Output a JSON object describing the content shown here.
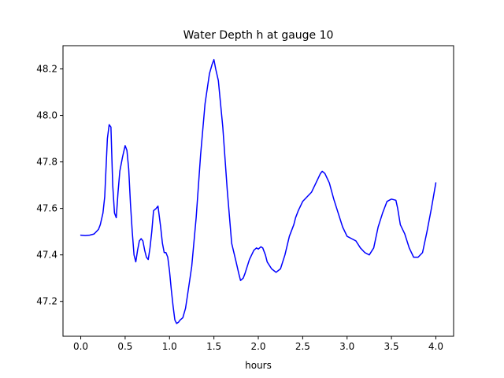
{
  "chart_data": {
    "type": "line",
    "title": "Water Depth h at gauge 10",
    "xlabel": "hours",
    "ylabel": "",
    "xlim": [
      -0.2,
      4.2
    ],
    "ylim": [
      47.05,
      48.3
    ],
    "xticks": [
      0.0,
      0.5,
      1.0,
      1.5,
      2.0,
      2.5,
      3.0,
      3.5,
      4.0
    ],
    "xtick_labels": [
      "0.0",
      "0.5",
      "1.0",
      "1.5",
      "2.0",
      "2.5",
      "3.0",
      "3.5",
      "4.0"
    ],
    "yticks": [
      47.2,
      47.4,
      47.6,
      47.8,
      48.0,
      48.2
    ],
    "ytick_labels": [
      "47.2",
      "47.4",
      "47.6",
      "47.8",
      "48.0",
      "48.2"
    ],
    "grid": false,
    "series": [
      {
        "color": "#0000ff",
        "x": [
          0.0,
          0.05,
          0.1,
          0.15,
          0.2,
          0.22,
          0.25,
          0.27,
          0.3,
          0.32,
          0.34,
          0.36,
          0.38,
          0.4,
          0.42,
          0.44,
          0.47,
          0.5,
          0.52,
          0.54,
          0.56,
          0.58,
          0.6,
          0.62,
          0.64,
          0.66,
          0.68,
          0.7,
          0.72,
          0.74,
          0.76,
          0.78,
          0.8,
          0.82,
          0.85,
          0.87,
          0.9,
          0.92,
          0.94,
          0.96,
          0.98,
          1.0,
          1.02,
          1.04,
          1.06,
          1.08,
          1.1,
          1.12,
          1.15,
          1.18,
          1.2,
          1.25,
          1.3,
          1.35,
          1.4,
          1.45,
          1.48,
          1.5,
          1.52,
          1.55,
          1.6,
          1.65,
          1.7,
          1.75,
          1.78,
          1.8,
          1.83,
          1.85,
          1.9,
          1.95,
          1.98,
          2.0,
          2.03,
          2.05,
          2.08,
          2.1,
          2.15,
          2.2,
          2.25,
          2.3,
          2.35,
          2.4,
          2.42,
          2.45,
          2.5,
          2.55,
          2.6,
          2.65,
          2.7,
          2.72,
          2.75,
          2.8,
          2.85,
          2.9,
          2.95,
          3.0,
          3.05,
          3.1,
          3.15,
          3.2,
          3.25,
          3.3,
          3.35,
          3.4,
          3.45,
          3.5,
          3.55,
          3.57,
          3.6,
          3.65,
          3.7,
          3.75,
          3.8,
          3.85,
          3.9,
          3.95,
          4.0
        ],
        "y": [
          47.485,
          47.483,
          47.485,
          47.49,
          47.51,
          47.53,
          47.58,
          47.65,
          47.9,
          47.96,
          47.95,
          47.7,
          47.58,
          47.56,
          47.67,
          47.76,
          47.82,
          47.87,
          47.85,
          47.77,
          47.62,
          47.5,
          47.4,
          47.37,
          47.42,
          47.46,
          47.47,
          47.46,
          47.42,
          47.39,
          47.38,
          47.43,
          47.5,
          47.59,
          47.6,
          47.61,
          47.52,
          47.45,
          47.41,
          47.41,
          47.39,
          47.33,
          47.25,
          47.18,
          47.12,
          47.105,
          47.11,
          47.12,
          47.13,
          47.17,
          47.22,
          47.35,
          47.56,
          47.83,
          48.05,
          48.18,
          48.22,
          48.24,
          48.2,
          48.15,
          47.95,
          47.68,
          47.45,
          47.37,
          47.32,
          47.29,
          47.3,
          47.32,
          47.38,
          47.42,
          47.43,
          47.425,
          47.435,
          47.43,
          47.4,
          47.37,
          47.34,
          47.325,
          47.34,
          47.4,
          47.48,
          47.53,
          47.56,
          47.59,
          47.63,
          47.65,
          47.67,
          47.71,
          47.75,
          47.76,
          47.75,
          47.71,
          47.64,
          47.58,
          47.52,
          47.48,
          47.47,
          47.46,
          47.43,
          47.41,
          47.4,
          47.43,
          47.52,
          47.58,
          47.63,
          47.64,
          47.635,
          47.6,
          47.53,
          47.49,
          47.43,
          47.39,
          47.39,
          47.41,
          47.5,
          47.6,
          47.71
        ]
      }
    ]
  }
}
